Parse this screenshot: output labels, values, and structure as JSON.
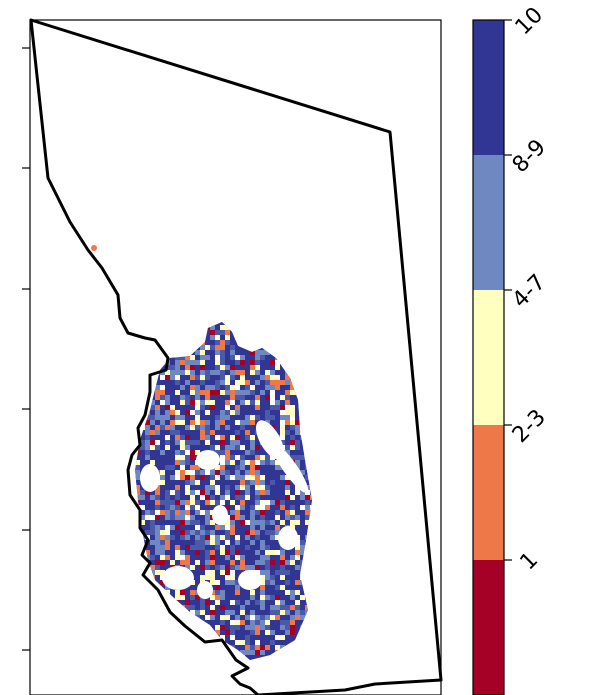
{
  "legend": {
    "categories": [
      {
        "label": "10",
        "color": "#313695"
      },
      {
        "label": "8-9",
        "color": "#7088c1"
      },
      {
        "label": "4-7",
        "color": "#ffffc0"
      },
      {
        "label": "2-3",
        "color": "#ee7847"
      },
      {
        "label": "1",
        "color": "#a50026"
      }
    ]
  },
  "map": {
    "border_color": "#000000",
    "frame_color": "#000000"
  }
}
